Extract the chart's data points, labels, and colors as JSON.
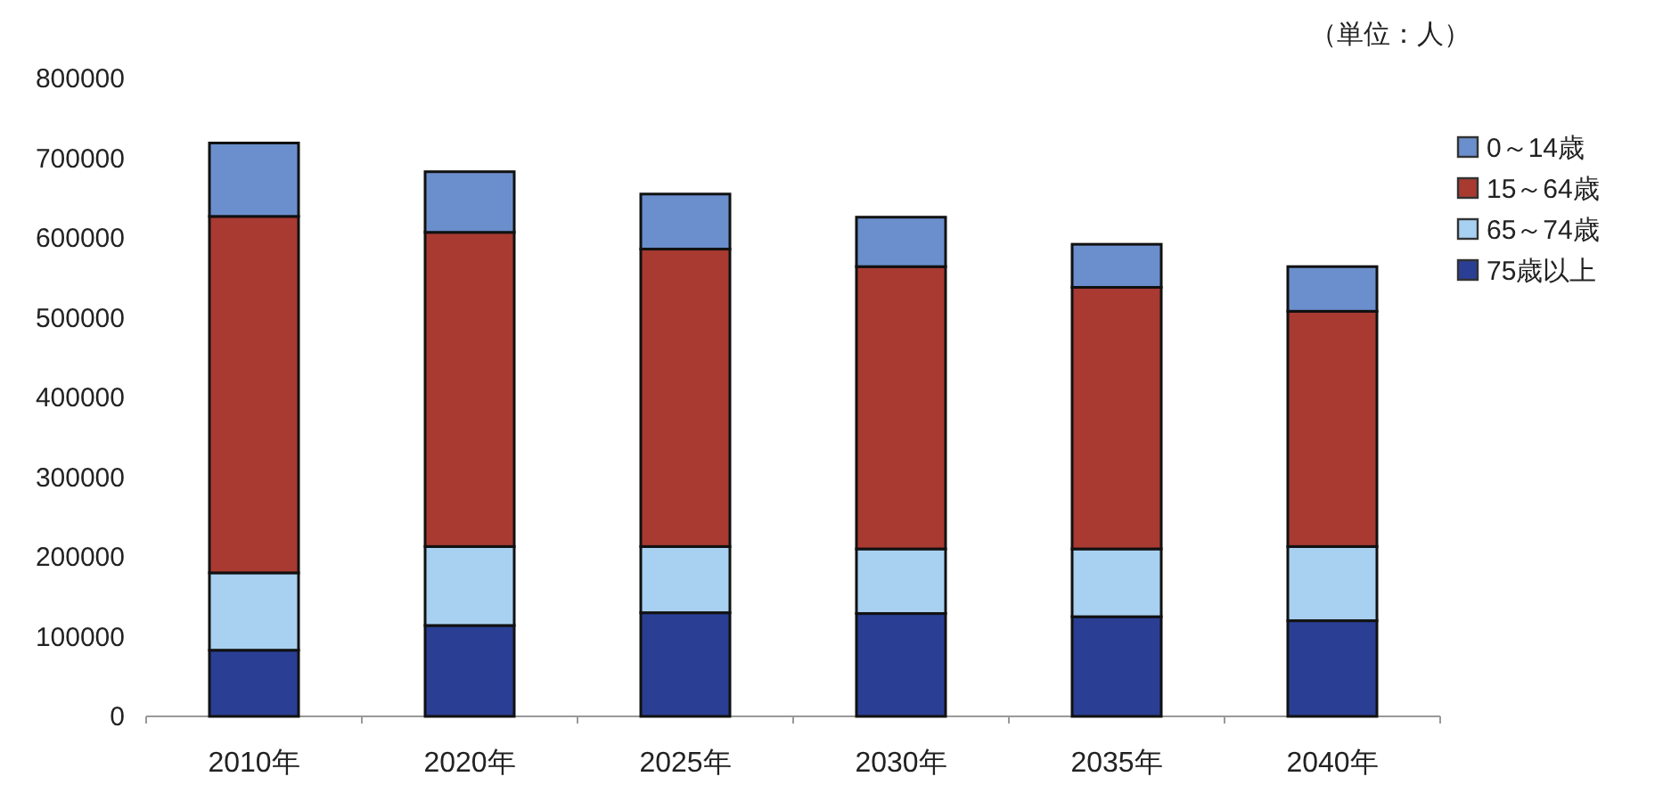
{
  "chart_data": {
    "type": "bar",
    "stacked": true,
    "categories": [
      "2010年",
      "2020年",
      "2025年",
      "2030年",
      "2035年",
      "2040年"
    ],
    "series": [
      {
        "name": "75歳以上",
        "color": "#2a3f94",
        "values": [
          83000,
          114000,
          130000,
          129000,
          125000,
          120000
        ]
      },
      {
        "name": "65～74歳",
        "color": "#a8d0f0",
        "values": [
          97000,
          99000,
          83000,
          81000,
          85000,
          93000
        ]
      },
      {
        "name": "15～64歳",
        "color": "#a83a32",
        "values": [
          447000,
          394000,
          373000,
          354000,
          328000,
          295000
        ]
      },
      {
        "name": "0～14歳",
        "color": "#6b8fcc",
        "values": [
          92000,
          76000,
          69000,
          62000,
          54000,
          56000
        ]
      }
    ],
    "ylim": [
      0,
      800000
    ],
    "yticks": [
      0,
      100000,
      200000,
      300000,
      400000,
      500000,
      600000,
      700000,
      800000
    ],
    "grid": false,
    "legend": "right",
    "annotations": [
      "（単位：人）"
    ]
  }
}
